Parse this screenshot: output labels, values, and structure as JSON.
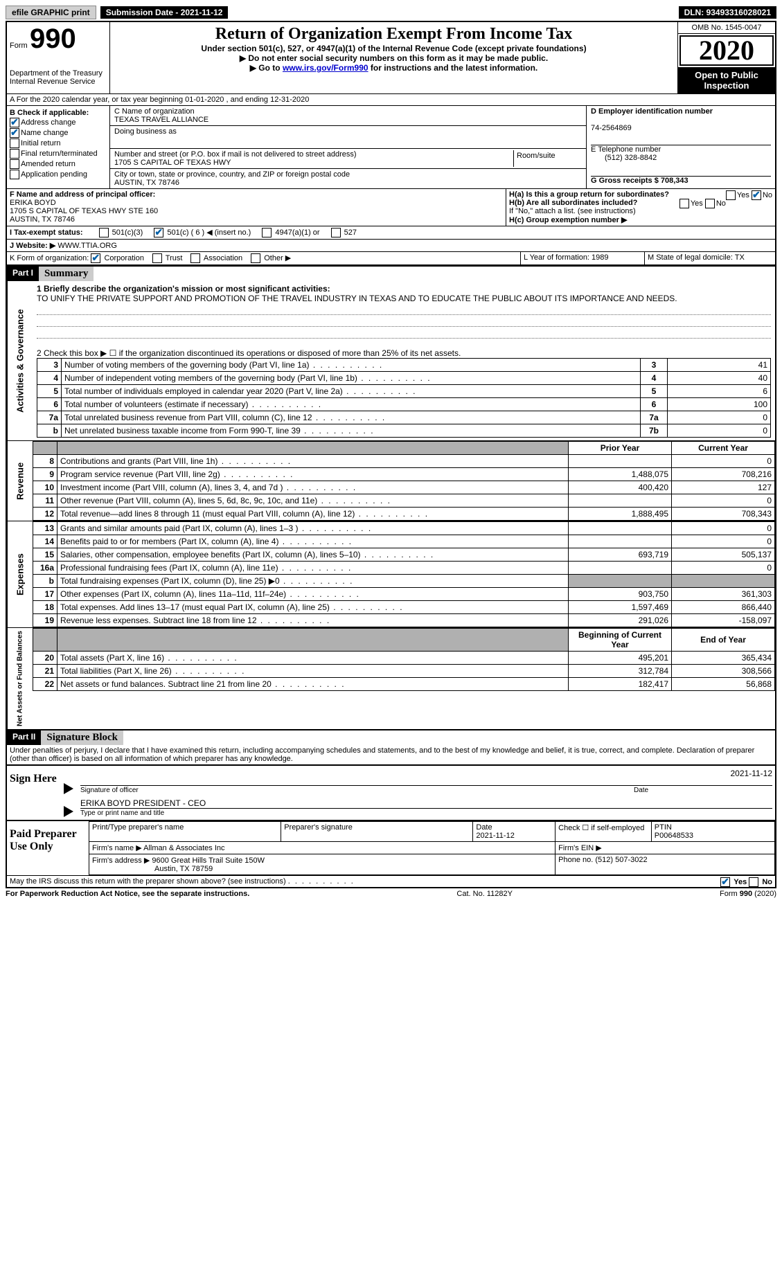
{
  "topbar": {
    "efile": "efile GRAPHIC print",
    "submission_label": "Submission Date - 2021-11-12",
    "dln_label": "DLN: 93493316028021"
  },
  "header": {
    "form_word": "Form",
    "form_num": "990",
    "dept": "Department of the Treasury Internal Revenue Service",
    "title": "Return of Organization Exempt From Income Tax",
    "subtitle": "Under section 501(c), 527, or 4947(a)(1) of the Internal Revenue Code (except private foundations)",
    "note1": "▶ Do not enter social security numbers on this form as it may be made public.",
    "note2_pre": "▶ Go to ",
    "note2_link": "www.irs.gov/Form990",
    "note2_post": " for instructions and the latest information.",
    "omb": "OMB No. 1545-0047",
    "year": "2020",
    "open": "Open to Public Inspection"
  },
  "line_a": "A For the 2020 calendar year, or tax year beginning 01-01-2020   , and ending 12-31-2020",
  "check_b": {
    "label": "B Check if applicable:",
    "items": [
      {
        "label": "Address change",
        "checked": true
      },
      {
        "label": "Name change",
        "checked": true
      },
      {
        "label": "Initial return",
        "checked": false
      },
      {
        "label": "Final return/terminated",
        "checked": false
      },
      {
        "label": "Amended return",
        "checked": false
      },
      {
        "label": "Application pending",
        "checked": false
      }
    ]
  },
  "block_c": {
    "name_label": "C Name of organization",
    "name": "TEXAS TRAVEL ALLIANCE",
    "dba_label": "Doing business as",
    "addr_label": "Number and street (or P.O. box if mail is not delivered to street address)",
    "room_label": "Room/suite",
    "addr": "1705 S CAPITAL OF TEXAS HWY",
    "city_label": "City or town, state or province, country, and ZIP or foreign postal code",
    "city": "AUSTIN, TX  78746"
  },
  "block_d": {
    "label": "D Employer identification number",
    "value": "74-2564869"
  },
  "block_e": {
    "label": "E Telephone number",
    "value": "(512) 328-8842"
  },
  "block_g": {
    "label": "G Gross receipts $ 708,343"
  },
  "block_f": {
    "label": "F Name and address of principal officer:",
    "name": "ERIKA BOYD",
    "addr1": "1705 S CAPITAL OF TEXAS HWY STE 160",
    "addr2": "AUSTIN, TX  78746"
  },
  "block_h": {
    "ha_label": "H(a)  Is this a group return for subordinates?",
    "ha_yes": "Yes",
    "ha_no": "No",
    "hb_label": "H(b)  Are all subordinates included?",
    "hb_note": "If \"No,\" attach a list. (see instructions)",
    "hc_label": "H(c)  Group exemption number ▶"
  },
  "line_i": {
    "label": "I   Tax-exempt status:",
    "opts": [
      "501(c)(3)",
      "501(c) ( 6 ) ◀ (insert no.)",
      "4947(a)(1) or",
      "527"
    ],
    "checked_index": 1
  },
  "line_j": {
    "label": "J   Website: ▶",
    "value": "WWW.TTIA.ORG"
  },
  "line_k": {
    "label": "K Form of organization:",
    "opts": [
      "Corporation",
      "Trust",
      "Association",
      "Other ▶"
    ],
    "checked_index": 0
  },
  "line_l": {
    "label": "L Year of formation: 1989"
  },
  "line_m": {
    "label": "M State of legal domicile: TX"
  },
  "part1": {
    "hdr": "Part I",
    "title": "Summary",
    "q1_label": "1  Briefly describe the organization's mission or most significant activities:",
    "q1_text": "TO UNIFY THE PRIVATE SUPPORT AND PROMOTION OF THE TRAVEL INDUSTRY IN TEXAS AND TO EDUCATE THE PUBLIC ABOUT ITS IMPORTANCE AND NEEDS.",
    "q2_label": "2   Check this box ▶ ☐  if the organization discontinued its operations or disposed of more than 25% of its net assets.",
    "side1": "Activities & Governance",
    "gov_rows": [
      {
        "n": "3",
        "label": "Number of voting members of the governing body (Part VI, line 1a)",
        "box": "3",
        "val": "41"
      },
      {
        "n": "4",
        "label": "Number of independent voting members of the governing body (Part VI, line 1b)",
        "box": "4",
        "val": "40"
      },
      {
        "n": "5",
        "label": "Total number of individuals employed in calendar year 2020 (Part V, line 2a)",
        "box": "5",
        "val": "6"
      },
      {
        "n": "6",
        "label": "Total number of volunteers (estimate if necessary)",
        "box": "6",
        "val": "100"
      },
      {
        "n": "7a",
        "label": "Total unrelated business revenue from Part VIII, column (C), line 12",
        "box": "7a",
        "val": "0"
      },
      {
        "n": "b",
        "label": "Net unrelated business taxable income from Form 990-T, line 39",
        "box": "7b",
        "val": "0"
      }
    ],
    "col_prior": "Prior Year",
    "col_current": "Current Year",
    "side2": "Revenue",
    "rev_rows": [
      {
        "n": "8",
        "label": "Contributions and grants (Part VIII, line 1h)",
        "p": "",
        "c": "0"
      },
      {
        "n": "9",
        "label": "Program service revenue (Part VIII, line 2g)",
        "p": "1,488,075",
        "c": "708,216"
      },
      {
        "n": "10",
        "label": "Investment income (Part VIII, column (A), lines 3, 4, and 7d )",
        "p": "400,420",
        "c": "127"
      },
      {
        "n": "11",
        "label": "Other revenue (Part VIII, column (A), lines 5, 6d, 8c, 9c, 10c, and 11e)",
        "p": "",
        "c": "0"
      },
      {
        "n": "12",
        "label": "Total revenue—add lines 8 through 11 (must equal Part VIII, column (A), line 12)",
        "p": "1,888,495",
        "c": "708,343"
      }
    ],
    "side3": "Expenses",
    "exp_rows": [
      {
        "n": "13",
        "label": "Grants and similar amounts paid (Part IX, column (A), lines 1–3 )",
        "p": "",
        "c": "0"
      },
      {
        "n": "14",
        "label": "Benefits paid to or for members (Part IX, column (A), line 4)",
        "p": "",
        "c": "0"
      },
      {
        "n": "15",
        "label": "Salaries, other compensation, employee benefits (Part IX, column (A), lines 5–10)",
        "p": "693,719",
        "c": "505,137"
      },
      {
        "n": "16a",
        "label": "Professional fundraising fees (Part IX, column (A), line 11e)",
        "p": "",
        "c": "0"
      },
      {
        "n": "b",
        "label": "Total fundraising expenses (Part IX, column (D), line 25) ▶0",
        "p": "SHADE",
        "c": "SHADE"
      },
      {
        "n": "17",
        "label": "Other expenses (Part IX, column (A), lines 11a–11d, 11f–24e)",
        "p": "903,750",
        "c": "361,303"
      },
      {
        "n": "18",
        "label": "Total expenses. Add lines 13–17 (must equal Part IX, column (A), line 25)",
        "p": "1,597,469",
        "c": "866,440"
      },
      {
        "n": "19",
        "label": "Revenue less expenses. Subtract line 18 from line 12",
        "p": "291,026",
        "c": "-158,097"
      }
    ],
    "col_begin": "Beginning of Current Year",
    "col_end": "End of Year",
    "side4": "Net Assets or Fund Balances",
    "na_rows": [
      {
        "n": "20",
        "label": "Total assets (Part X, line 16)",
        "p": "495,201",
        "c": "365,434"
      },
      {
        "n": "21",
        "label": "Total liabilities (Part X, line 26)",
        "p": "312,784",
        "c": "308,566"
      },
      {
        "n": "22",
        "label": "Net assets or fund balances. Subtract line 21 from line 20",
        "p": "182,417",
        "c": "56,868"
      }
    ]
  },
  "part2": {
    "hdr": "Part II",
    "title": "Signature Block",
    "decl": "Under penalties of perjury, I declare that I have examined this return, including accompanying schedules and statements, and to the best of my knowledge and belief, it is true, correct, and complete. Declaration of preparer (other than officer) is based on all information of which preparer has any knowledge.",
    "sign_here": "Sign Here",
    "sig_officer": "Signature of officer",
    "sig_date": "Date",
    "sig_date_val": "2021-11-12",
    "officer_name": "ERIKA BOYD  PRESIDENT - CEO",
    "officer_label": "Type or print name and title",
    "paid": "Paid Preparer Use Only",
    "prep_name_label": "Print/Type preparer's name",
    "prep_sig_label": "Preparer's signature",
    "prep_date_label": "Date",
    "prep_date_val": "2021-11-12",
    "prep_check_label": "Check ☐ if self-employed",
    "ptin_label": "PTIN",
    "ptin": "P00648533",
    "firm_name_label": "Firm's name   ▶",
    "firm_name": "Allman & Associates Inc",
    "firm_ein_label": "Firm's EIN ▶",
    "firm_addr_label": "Firm's address ▶",
    "firm_addr1": "9600 Great Hills Trail Suite 150W",
    "firm_addr2": "Austin, TX  78759",
    "firm_phone_label": "Phone no.",
    "firm_phone": "(512) 507-3022",
    "discuss": "May the IRS discuss this return with the preparer shown above? (see instructions)",
    "discuss_yes": "Yes",
    "discuss_no": "No"
  },
  "footer": {
    "pra": "For Paperwork Reduction Act Notice, see the separate instructions.",
    "cat": "Cat. No. 11282Y",
    "form": "Form 990 (2020)"
  }
}
